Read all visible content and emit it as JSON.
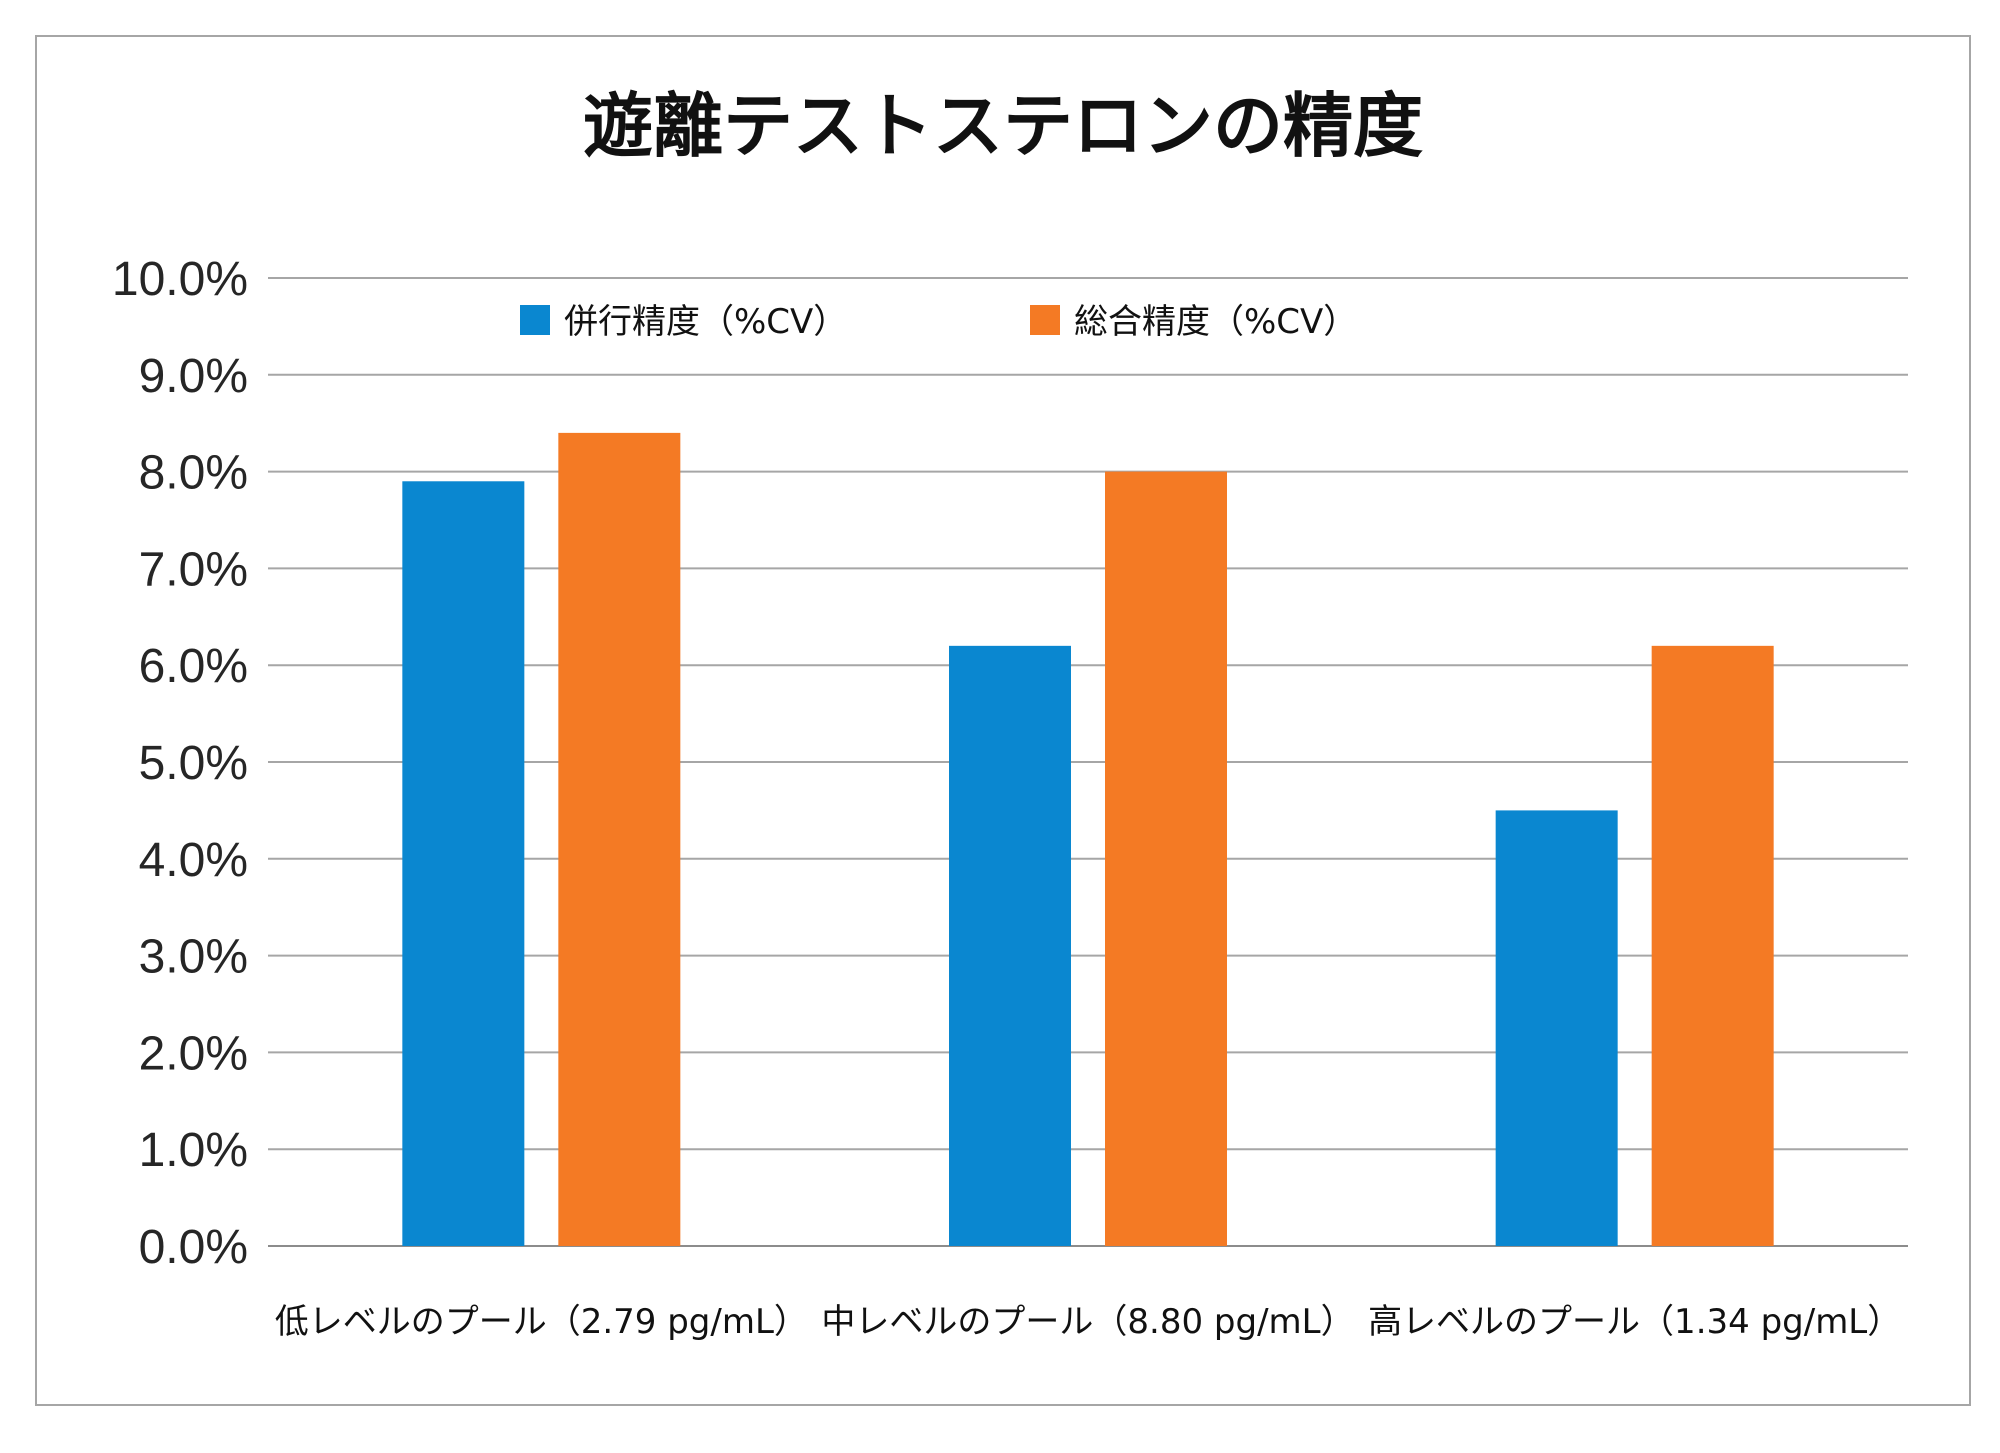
{
  "chart_data": {
    "type": "bar",
    "title": "遊離テストステロンの精度",
    "categories": [
      "低レベルのプール（2.79 pg/mL）",
      "中レベルのプール（8.80 pg/mL）",
      "高レベルのプール（1.34 pg/mL）"
    ],
    "series": [
      {
        "name": "併行精度（%CV）",
        "values": [
          7.9,
          6.2,
          4.5
        ],
        "color": "#0a87d0"
      },
      {
        "name": "総合精度（%CV）",
        "values": [
          8.4,
          8.0,
          6.2
        ],
        "color": "#f47a24"
      }
    ],
    "ylim": [
      0,
      10
    ],
    "yticks": [
      "0.0%",
      "1.0%",
      "2.0%",
      "3.0%",
      "4.0%",
      "5.0%",
      "6.0%",
      "7.0%",
      "8.0%",
      "9.0%",
      "10.0%"
    ],
    "grid": true,
    "legend_position": "top-center"
  }
}
